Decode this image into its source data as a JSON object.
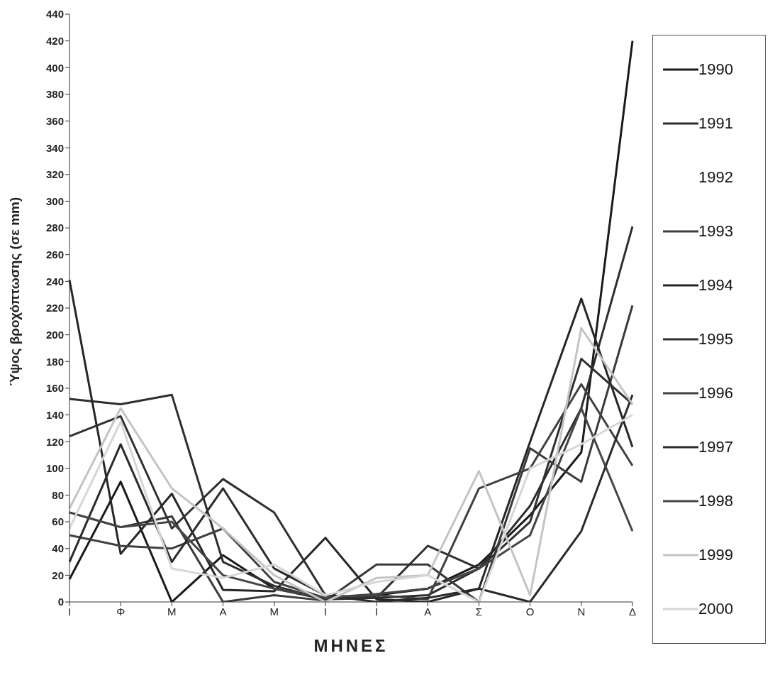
{
  "chart_data": {
    "type": "line",
    "xlabel": "ΜΗΝΕΣ",
    "ylabel": "Ύψος βροχόπτωσης (σε mm)",
    "categories": [
      "Ι",
      "Φ",
      "Μ",
      "Α",
      "Μ",
      "Ι",
      "Ι",
      "Α",
      "Σ",
      "Ο",
      "Ν",
      "Δ"
    ],
    "ylim": [
      0,
      440
    ],
    "yticks": [
      0,
      20,
      40,
      60,
      80,
      100,
      120,
      140,
      160,
      180,
      200,
      220,
      240,
      260,
      280,
      300,
      320,
      340,
      360,
      380,
      400,
      420,
      440
    ],
    "grid": false,
    "legend": "right",
    "marker": "none",
    "series": [
      {
        "name": "1990",
        "color": "#1a1a1a",
        "values": [
          17,
          90,
          0,
          35,
          10,
          2,
          5,
          10,
          28,
          65,
          112,
          420
        ]
      },
      {
        "name": "1991",
        "color": "#2e2e2e",
        "values": [
          152,
          148,
          155,
          30,
          12,
          2,
          3,
          5,
          25,
          72,
          145,
          281
        ]
      },
      {
        "name": "1992",
        "values": [
          null,
          null,
          null,
          null,
          null,
          null,
          null,
          null,
          null,
          null,
          null,
          null
        ]
      },
      {
        "name": "1993",
        "color": "#3a3a3a",
        "values": [
          67,
          56,
          64,
          0,
          5,
          1,
          28,
          28,
          0,
          115,
          90,
          222
        ]
      },
      {
        "name": "1994",
        "color": "#262626",
        "values": [
          241,
          36,
          81,
          9,
          8,
          48,
          2,
          0,
          10,
          120,
          227,
          116
        ]
      },
      {
        "name": "1995",
        "color": "#303030",
        "values": [
          124,
          139,
          55,
          92,
          67,
          5,
          3,
          42,
          25,
          60,
          182,
          148
        ]
      },
      {
        "name": "1996",
        "color": "#404040",
        "values": [
          50,
          42,
          40,
          55,
          15,
          3,
          5,
          2,
          85,
          100,
          163,
          102
        ]
      },
      {
        "name": "1997",
        "color": "#2a2a2a",
        "values": [
          30,
          118,
          30,
          85,
          25,
          5,
          0,
          3,
          10,
          0,
          53,
          155
        ]
      },
      {
        "name": "1998",
        "color": "#454545",
        "values": [
          67,
          56,
          60,
          20,
          10,
          3,
          6,
          10,
          25,
          50,
          145,
          53
        ]
      },
      {
        "name": "1999",
        "color": "#c4c4c4",
        "values": [
          70,
          145,
          85,
          55,
          20,
          0,
          18,
          20,
          98,
          5,
          205,
          148
        ]
      },
      {
        "name": "2000",
        "color": "#d6d6d6",
        "values": [
          55,
          135,
          25,
          18,
          28,
          5,
          15,
          20,
          0,
          100,
          118,
          140
        ]
      }
    ]
  }
}
